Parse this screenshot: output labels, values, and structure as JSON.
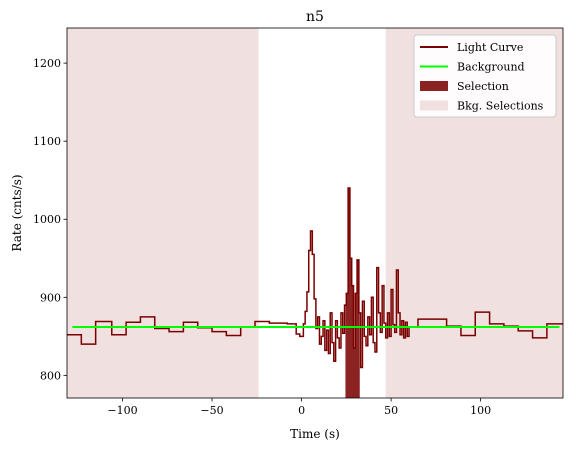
{
  "chart_data": {
    "type": "line",
    "title": "n5",
    "xlabel": "Time (s)",
    "ylabel": "Rate (cnts/s)",
    "xlim": [
      -131,
      146
    ],
    "ylim": [
      771,
      1245
    ],
    "xticks": [
      -100,
      -50,
      0,
      50,
      100
    ],
    "xtick_labels": [
      "−100",
      "−50",
      "0",
      "50",
      "100"
    ],
    "yticks": [
      800,
      900,
      1000,
      1100,
      1200
    ],
    "ytick_labels": [
      "800",
      "900",
      "1000",
      "1100",
      "1200"
    ],
    "grid": false,
    "legend_position": "top-right",
    "legend": [
      {
        "label": "Light Curve",
        "kind": "line",
        "color": "#7a0000"
      },
      {
        "label": "Background",
        "kind": "line",
        "color": "#00ff00"
      },
      {
        "label": "Selection",
        "kind": "patch",
        "color": "#8b2323"
      },
      {
        "label": "Bkg. Selections",
        "kind": "patch",
        "color": "#f0e0e0"
      }
    ],
    "colors": {
      "light_curve": "#7a0000",
      "background": "#00ff00",
      "selection": "#8b2323",
      "bkg_selection": "#f0e0e0"
    },
    "background_level": 862,
    "background_x": [
      -128,
      144
    ],
    "selection_range": [
      24.5,
      32.5
    ],
    "bkg_selection_ranges": [
      [
        -131,
        -24
      ],
      [
        47,
        146
      ]
    ],
    "light_curve_steps": [
      [
        -131,
        852
      ],
      [
        -123,
        840
      ],
      [
        -115,
        869
      ],
      [
        -106,
        852
      ],
      [
        -98,
        868
      ],
      [
        -90,
        875
      ],
      [
        -82,
        860
      ],
      [
        -74,
        856
      ],
      [
        -66,
        868
      ],
      [
        -58,
        861
      ],
      [
        -50,
        856
      ],
      [
        -42,
        851
      ],
      [
        -34,
        862
      ],
      [
        -26,
        869
      ],
      [
        -18,
        867
      ],
      [
        -8,
        866
      ],
      [
        -3,
        853
      ],
      [
        -1,
        850
      ],
      [
        1,
        866
      ],
      [
        2,
        882
      ],
      [
        3,
        907
      ],
      [
        4,
        960
      ],
      [
        5,
        985
      ],
      [
        6,
        955
      ],
      [
        7,
        898
      ],
      [
        8,
        860
      ],
      [
        9,
        875
      ],
      [
        10,
        840
      ],
      [
        11,
        850
      ],
      [
        12,
        870
      ],
      [
        13,
        832
      ],
      [
        14,
        858
      ],
      [
        15,
        828
      ],
      [
        16,
        880
      ],
      [
        17,
        842
      ],
      [
        18,
        818
      ],
      [
        19,
        870
      ],
      [
        20,
        848
      ],
      [
        21,
        835
      ],
      [
        22,
        880
      ],
      [
        23,
        854
      ],
      [
        24,
        890
      ],
      [
        25,
        905
      ],
      [
        26,
        1040
      ],
      [
        27,
        950
      ],
      [
        28,
        915
      ],
      [
        29,
        835
      ],
      [
        30,
        905
      ],
      [
        31,
        948
      ],
      [
        32,
        880
      ],
      [
        33,
        810
      ],
      [
        34,
        895
      ],
      [
        35,
        850
      ],
      [
        36,
        838
      ],
      [
        37,
        875
      ],
      [
        38,
        852
      ],
      [
        39,
        900
      ],
      [
        40,
        842
      ],
      [
        41,
        830
      ],
      [
        42,
        938
      ],
      [
        43,
        880
      ],
      [
        44,
        855
      ],
      [
        45,
        915
      ],
      [
        46,
        867
      ],
      [
        47,
        848
      ],
      [
        48,
        880
      ],
      [
        49,
        850
      ],
      [
        50,
        910
      ],
      [
        51,
        865
      ],
      [
        52,
        855
      ],
      [
        53,
        935
      ],
      [
        54,
        880
      ],
      [
        55,
        852
      ],
      [
        56,
        870
      ],
      [
        57,
        848
      ],
      [
        58,
        868
      ],
      [
        59,
        850
      ],
      [
        60,
        862
      ],
      [
        65,
        872
      ],
      [
        73,
        872
      ],
      [
        81,
        863
      ],
      [
        89,
        851
      ],
      [
        97,
        881
      ],
      [
        105,
        866
      ],
      [
        113,
        863
      ],
      [
        121,
        857
      ],
      [
        129,
        848
      ],
      [
        137,
        866
      ],
      [
        146,
        866
      ]
    ]
  }
}
